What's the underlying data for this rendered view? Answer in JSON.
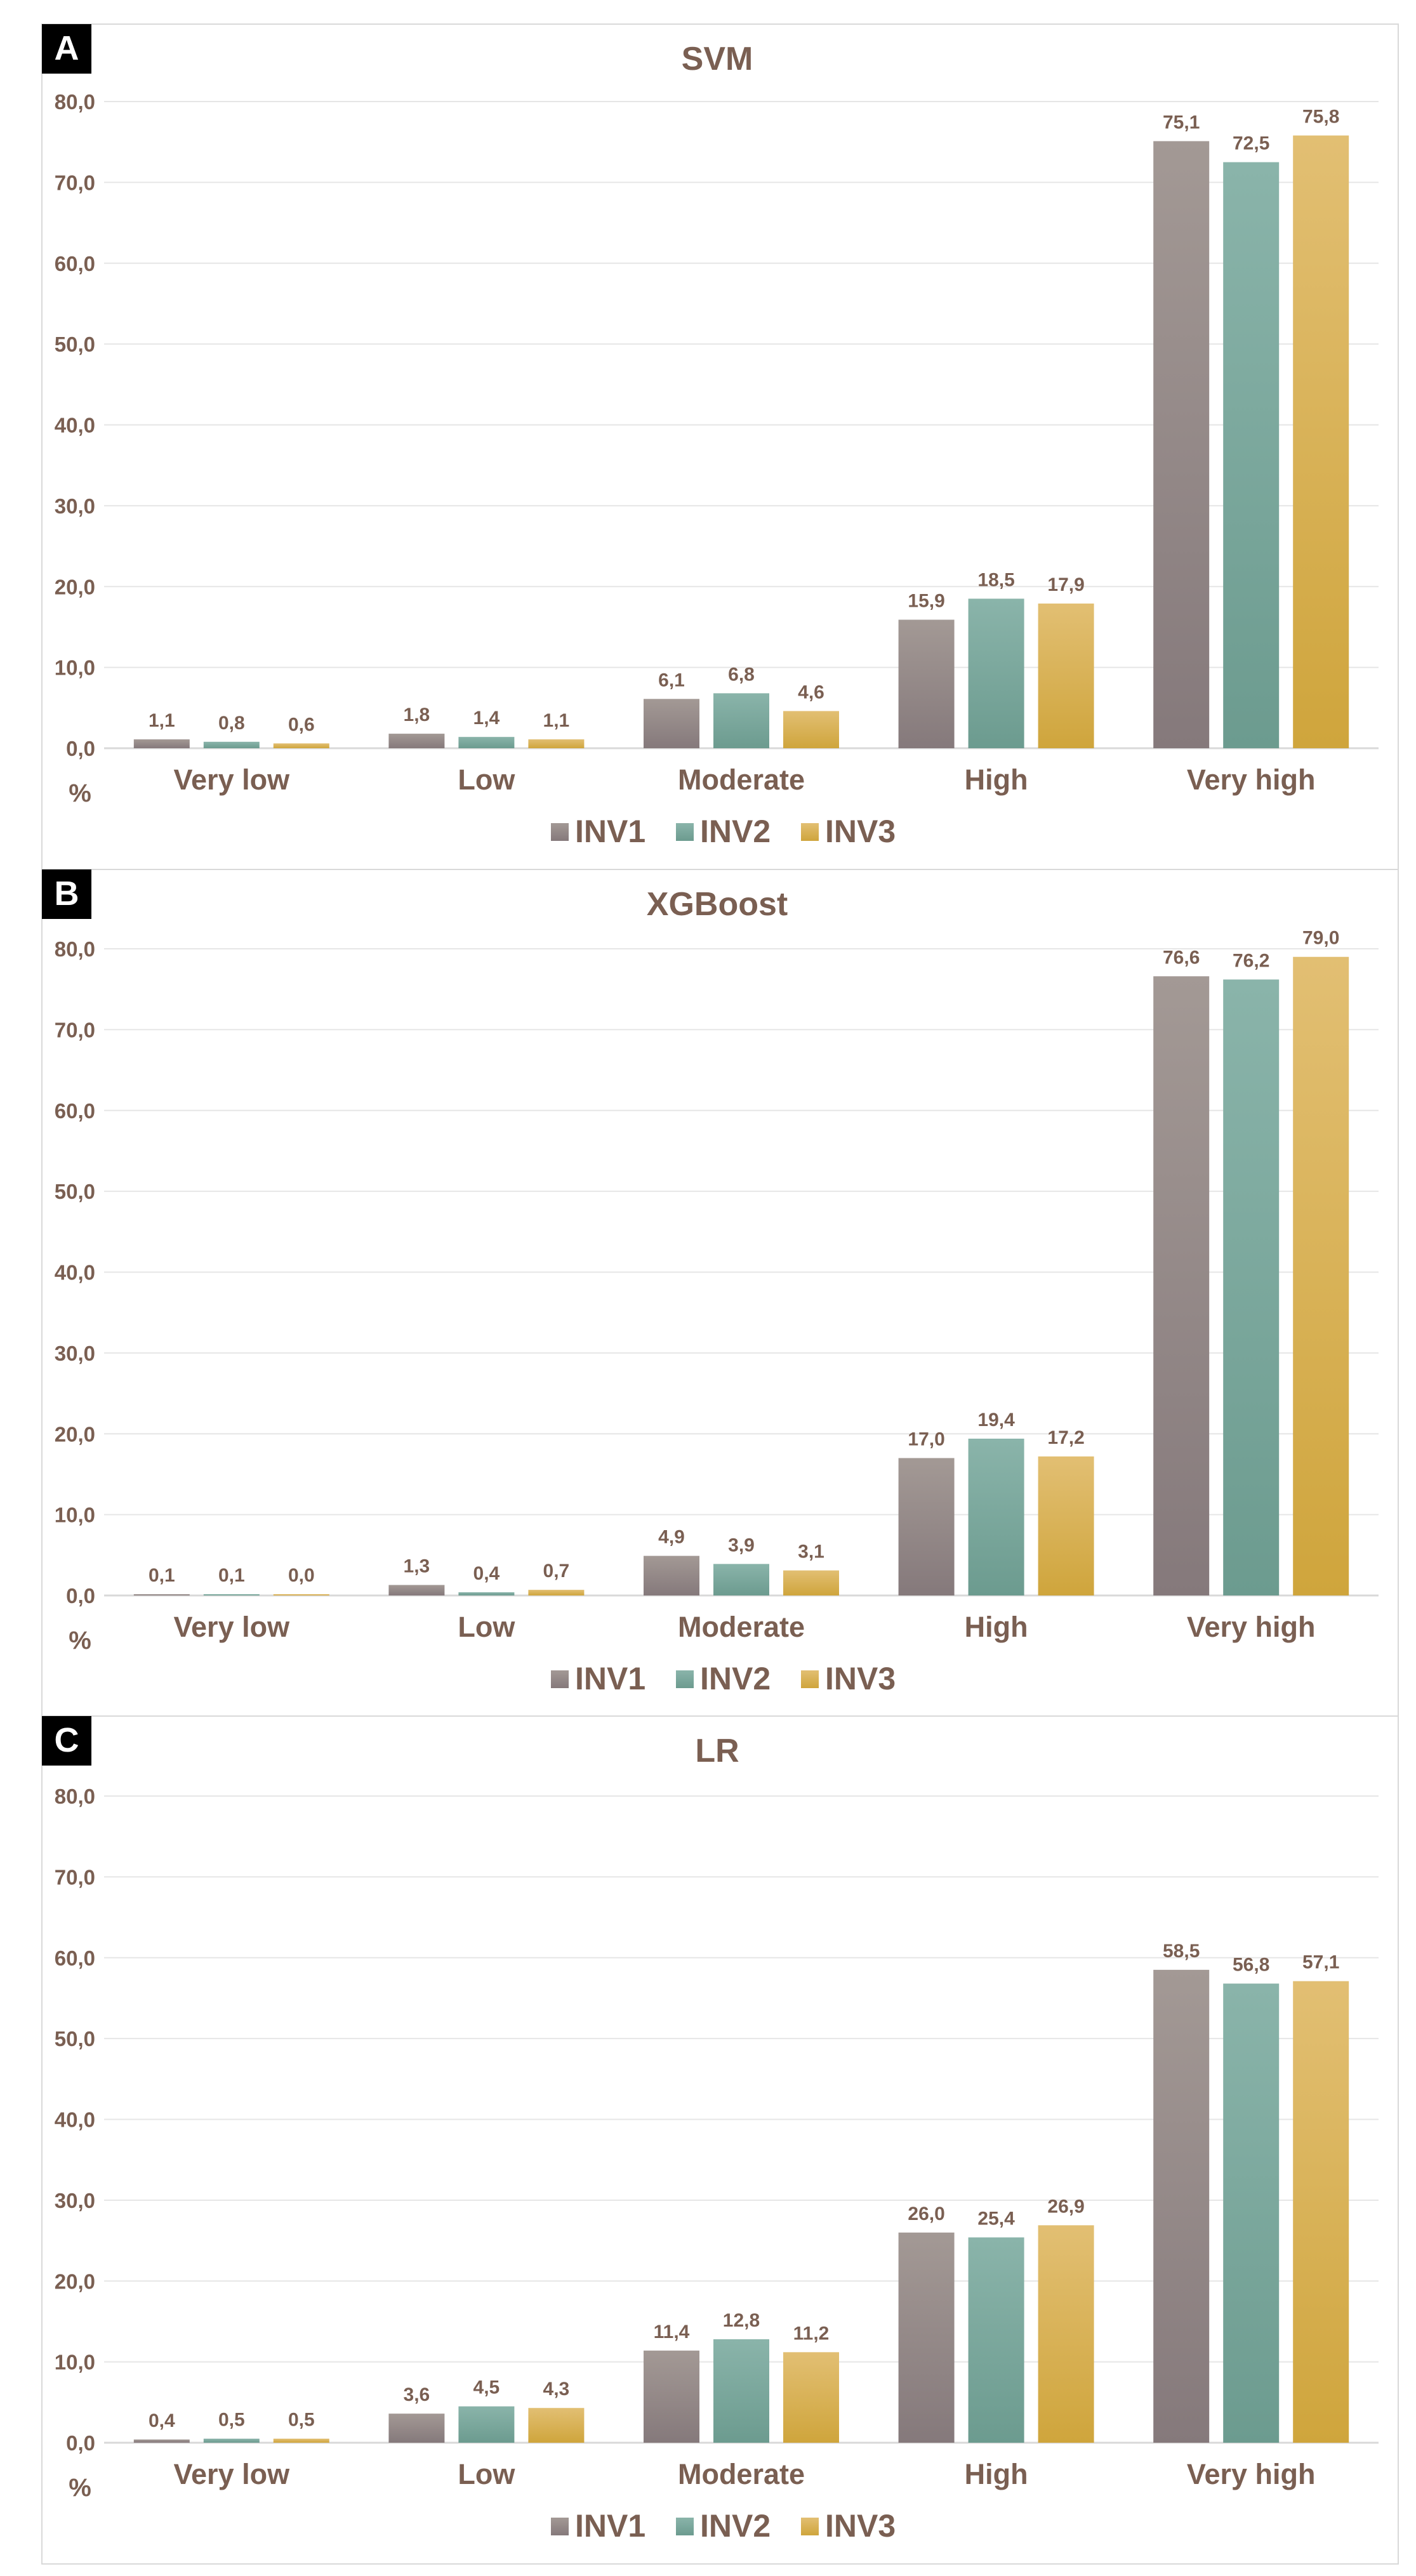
{
  "colors": {
    "text": "#7a5f52",
    "grid": "#e6e6e6",
    "axis": "#d9d9d9",
    "border": "#d9d9d9",
    "letter_bg": "#000000",
    "letter_text": "#ffffff",
    "INV1_top": "#a39995",
    "INV1_bottom": "#85797b",
    "INV2_top": "#8ab4aa",
    "INV2_bottom": "#6c9b8f",
    "INV3_top": "#e2bf73",
    "INV3_bottom": "#cfa53c"
  },
  "legend": [
    {
      "name": "INV1",
      "icon": "square-marker"
    },
    {
      "name": "INV2",
      "icon": "square-marker"
    },
    {
      "name": "INV3",
      "icon": "square-marker"
    }
  ],
  "chart_data": [
    {
      "panel": "A",
      "type": "bar",
      "title": "SVM",
      "ylabel": "%",
      "ylim": [
        0,
        80
      ],
      "yticks": [
        "0,0",
        "10,0",
        "20,0",
        "30,0",
        "40,0",
        "50,0",
        "60,0",
        "70,0",
        "80,0"
      ],
      "categories": [
        "Very low",
        "Low",
        "Moderate",
        "High",
        "Very high"
      ],
      "series": [
        {
          "name": "INV1",
          "values": [
            1.1,
            1.8,
            6.1,
            15.9,
            75.1
          ],
          "labels": [
            "1,1",
            "1,8",
            "6,1",
            "15,9",
            "75,1"
          ]
        },
        {
          "name": "INV2",
          "values": [
            0.8,
            1.4,
            6.8,
            18.5,
            72.5
          ],
          "labels": [
            "0,8",
            "1,4",
            "6,8",
            "18,5",
            "72,5"
          ]
        },
        {
          "name": "INV3",
          "values": [
            0.6,
            1.1,
            4.6,
            17.9,
            75.8
          ],
          "labels": [
            "0,6",
            "1,1",
            "4,6",
            "17,9",
            "75,8"
          ]
        }
      ],
      "grid": true,
      "legend_position": "bottom"
    },
    {
      "panel": "B",
      "type": "bar",
      "title": "XGBoost",
      "ylabel": "%",
      "ylim": [
        0,
        80
      ],
      "yticks": [
        "0,0",
        "10,0",
        "20,0",
        "30,0",
        "40,0",
        "50,0",
        "60,0",
        "70,0",
        "80,0"
      ],
      "categories": [
        "Very low",
        "Low",
        "Moderate",
        "High",
        "Very high"
      ],
      "series": [
        {
          "name": "INV1",
          "values": [
            0.1,
            1.3,
            4.9,
            17.0,
            76.6
          ],
          "labels": [
            "0,1",
            "1,3",
            "4,9",
            "17,0",
            "76,6"
          ]
        },
        {
          "name": "INV2",
          "values": [
            0.1,
            0.4,
            3.9,
            19.4,
            76.2
          ],
          "labels": [
            "0,1",
            "0,4",
            "3,9",
            "19,4",
            "76,2"
          ]
        },
        {
          "name": "INV3",
          "values": [
            0.0,
            0.7,
            3.1,
            17.2,
            79.0
          ],
          "labels": [
            "0,0",
            "0,7",
            "3,1",
            "17,2",
            "79,0"
          ]
        }
      ],
      "grid": true,
      "legend_position": "bottom"
    },
    {
      "panel": "C",
      "type": "bar",
      "title": "LR",
      "ylabel": "%",
      "ylim": [
        0,
        80
      ],
      "yticks": [
        "0,0",
        "10,0",
        "20,0",
        "30,0",
        "40,0",
        "50,0",
        "60,0",
        "70,0",
        "80,0"
      ],
      "categories": [
        "Very low",
        "Low",
        "Moderate",
        "High",
        "Very high"
      ],
      "series": [
        {
          "name": "INV1",
          "values": [
            0.4,
            3.6,
            11.4,
            26.0,
            58.5
          ],
          "labels": [
            "0,4",
            "3,6",
            "11,4",
            "26,0",
            "58,5"
          ]
        },
        {
          "name": "INV2",
          "values": [
            0.5,
            4.5,
            12.8,
            25.4,
            56.8
          ],
          "labels": [
            "0,5",
            "4,5",
            "12,8",
            "25,4",
            "56,8"
          ]
        },
        {
          "name": "INV3",
          "values": [
            0.5,
            4.3,
            11.2,
            26.9,
            57.1
          ],
          "labels": [
            "0,5",
            "4,3",
            "11,2",
            "26,9",
            "57,1"
          ]
        }
      ],
      "grid": true,
      "legend_position": "bottom"
    }
  ]
}
